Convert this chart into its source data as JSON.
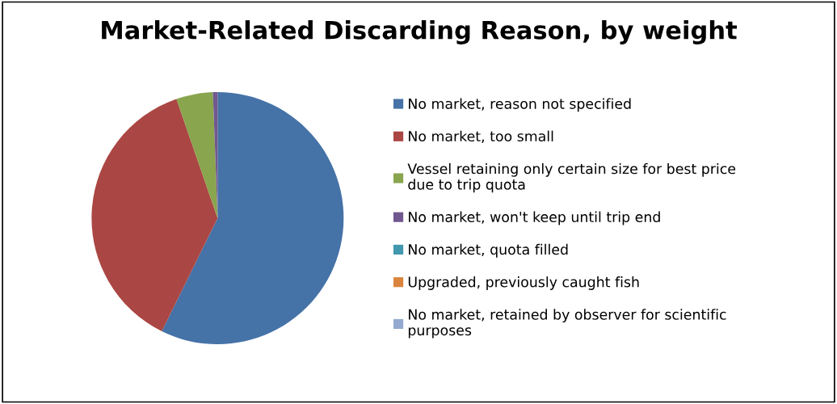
{
  "chart_data": {
    "type": "pie",
    "title": "Market-Related Discarding Reason, by weight",
    "categories": [
      "No market, reason not specified",
      "No market, too small",
      "Vessel retaining only certain size for best price due to trip quota",
      "No market, won't keep until trip end",
      "No market, quota filled",
      "Upgraded, previously caught fish",
      "No market, retained by observer for scientific purposes"
    ],
    "values": [
      57.3,
      37.4,
      4.7,
      0.6,
      0,
      0,
      0
    ],
    "colors": [
      "#4572a7",
      "#aa4643",
      "#89a54e",
      "#71588f",
      "#4198af",
      "#db843d",
      "#93a9cf"
    ],
    "legend": "right"
  }
}
